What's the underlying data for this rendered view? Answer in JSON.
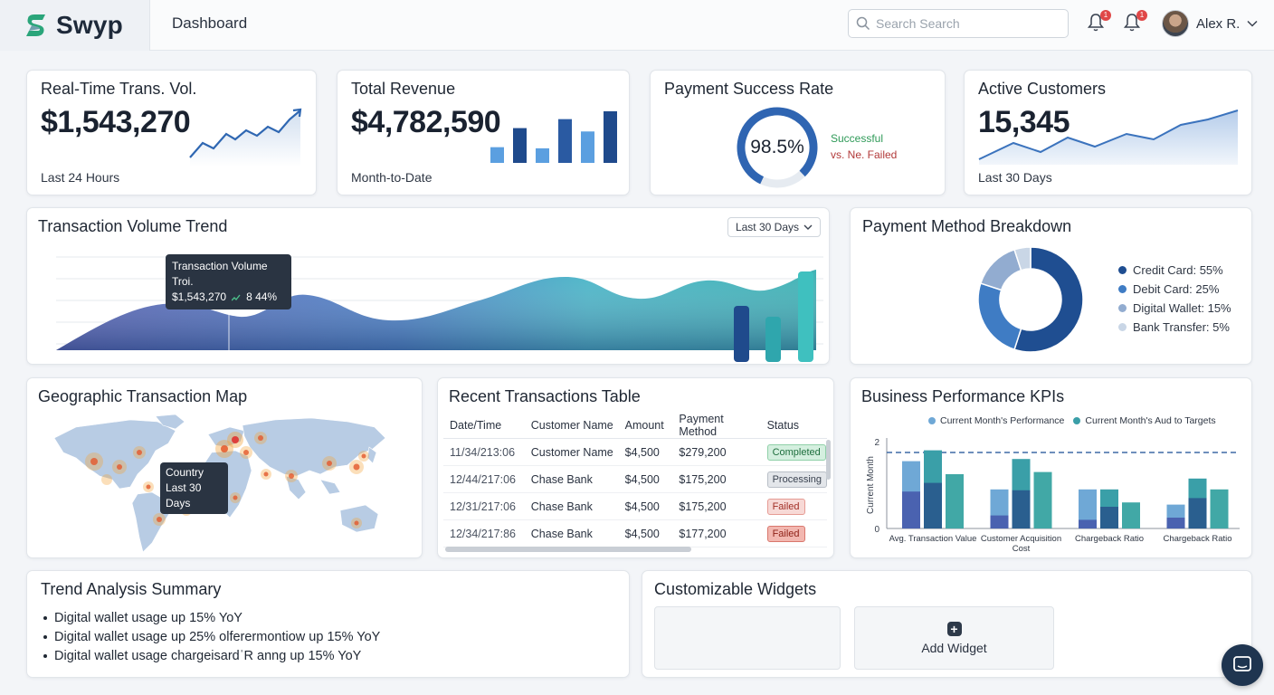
{
  "app": {
    "name": "Swyp",
    "page_title": "Dashboard"
  },
  "header": {
    "search_placeholder": "Search Search",
    "notifications": [
      {
        "badge": "1"
      },
      {
        "badge": "1"
      }
    ],
    "user_name": "Alex R."
  },
  "kpis": {
    "volume": {
      "title": "Real-Time Trans. Vol.",
      "value": "$1,543,270",
      "sub": "Last 24 Hours"
    },
    "revenue": {
      "title": "Total Revenue",
      "value": "$4,782,590",
      "sub": "Month-to-Date",
      "bars": [
        0.28,
        0.62,
        0.26,
        0.78,
        0.56,
        0.92
      ]
    },
    "success": {
      "title": "Payment Success Rate",
      "value": "98.5%",
      "rate": 0.985,
      "legend_success": "Successful",
      "legend_failed": "vs. Ne. Failed"
    },
    "customers": {
      "title": "Active Customers",
      "value": "15,345",
      "sub": "Last 30 Days"
    }
  },
  "trend": {
    "title": "Transaction Volume Trend",
    "range_label": "Last 30 Days",
    "tooltip_title": "Transaction Volume Troi.",
    "tooltip_value": "$1,543,270",
    "tooltip_change": "8 44%"
  },
  "payment_methods": {
    "title": "Payment Method Breakdown",
    "items": [
      {
        "label": "Credit Card: 55%",
        "share": 55,
        "color": "#1f4e91"
      },
      {
        "label": "Debit Card: 25%",
        "share": 25,
        "color": "#3f7cc4"
      },
      {
        "label": "Digital Wallet: 15%",
        "share": 15,
        "color": "#92acd0"
      },
      {
        "label": "Bank Transfer: 5%",
        "share": 5,
        "color": "#c9d6e6"
      }
    ]
  },
  "geo": {
    "title": "Geographic Transaction Map",
    "tooltip_line1": "Country",
    "tooltip_line2": "Last 30 Days"
  },
  "transactions": {
    "title": "Recent Transactions Table",
    "columns": [
      "Date/Time",
      "Customer Name",
      "Amount",
      "Payment Method",
      "Status"
    ],
    "rows": [
      {
        "date": "11/34/213:06",
        "customer": "Customer Name",
        "amount": "$4,500",
        "method": "$279,200",
        "status": "Completed"
      },
      {
        "date": "12/44/217:06",
        "customer": "Chase Bank",
        "amount": "$4,500",
        "method": "$175,200",
        "status": "Processing"
      },
      {
        "date": "12/31/217:06",
        "customer": "Chase Bank",
        "amount": "$4,500",
        "method": "$175,200",
        "status": "Failed"
      },
      {
        "date": "12/34/217:86",
        "customer": "Chase Bank",
        "amount": "$4,500",
        "method": "$177,200",
        "status": "Failed"
      }
    ]
  },
  "business_kpis": {
    "title": "Business Performance KPIs",
    "legend": [
      "Current Month's Performance",
      "Current Month's Aud to Targets"
    ],
    "ylabel": "Current Month",
    "y_ticks": [
      "0",
      "1",
      "2"
    ],
    "categories": [
      "Avg. Transaction Value",
      "Customer Acquisition Cost",
      "Chargeback Ratio",
      "Chargeback Ratio"
    ]
  },
  "chart_data": {
    "type": "bar",
    "title": "Business Performance KPIs",
    "ylabel": "Current Month",
    "categories": [
      "Avg. Transaction Value",
      "Customer Acquisition Cost",
      "Chargeback Ratio",
      "Chargeback Ratio"
    ],
    "ylim": [
      0,
      2
    ],
    "target": 1.75,
    "series": [
      {
        "name": "Current Month's Performance",
        "values": [
          1.55,
          0.9,
          0.9,
          0.55
        ],
        "inner": [
          0.85,
          0.3,
          0.2,
          0.25
        ],
        "color": "#6fa8d6",
        "inner_color": "#4a62b0"
      },
      {
        "name": "Current Month's Aud to Targets",
        "values": [
          1.8,
          1.6,
          0.9,
          1.15
        ],
        "inner": [
          1.05,
          0.88,
          0.5,
          0.7
        ],
        "color": "#3a9fa8",
        "inner_color": "#2a5f8f"
      },
      {
        "values": [
          1.25,
          1.3,
          0.6,
          0.9
        ],
        "color": "#41a8a6"
      }
    ]
  },
  "summary": {
    "title": "Trend Analysis Summary",
    "items": [
      "Digital wallet usage up 15% YoY",
      "Digital wallet usage up 25% olferermontiow up 15% YoY",
      "Digital wallet usage chargeisardˈR anng up 15% YoY"
    ]
  },
  "widgets": {
    "title": "Customizable Widgets",
    "add_label": "Add Widget"
  }
}
